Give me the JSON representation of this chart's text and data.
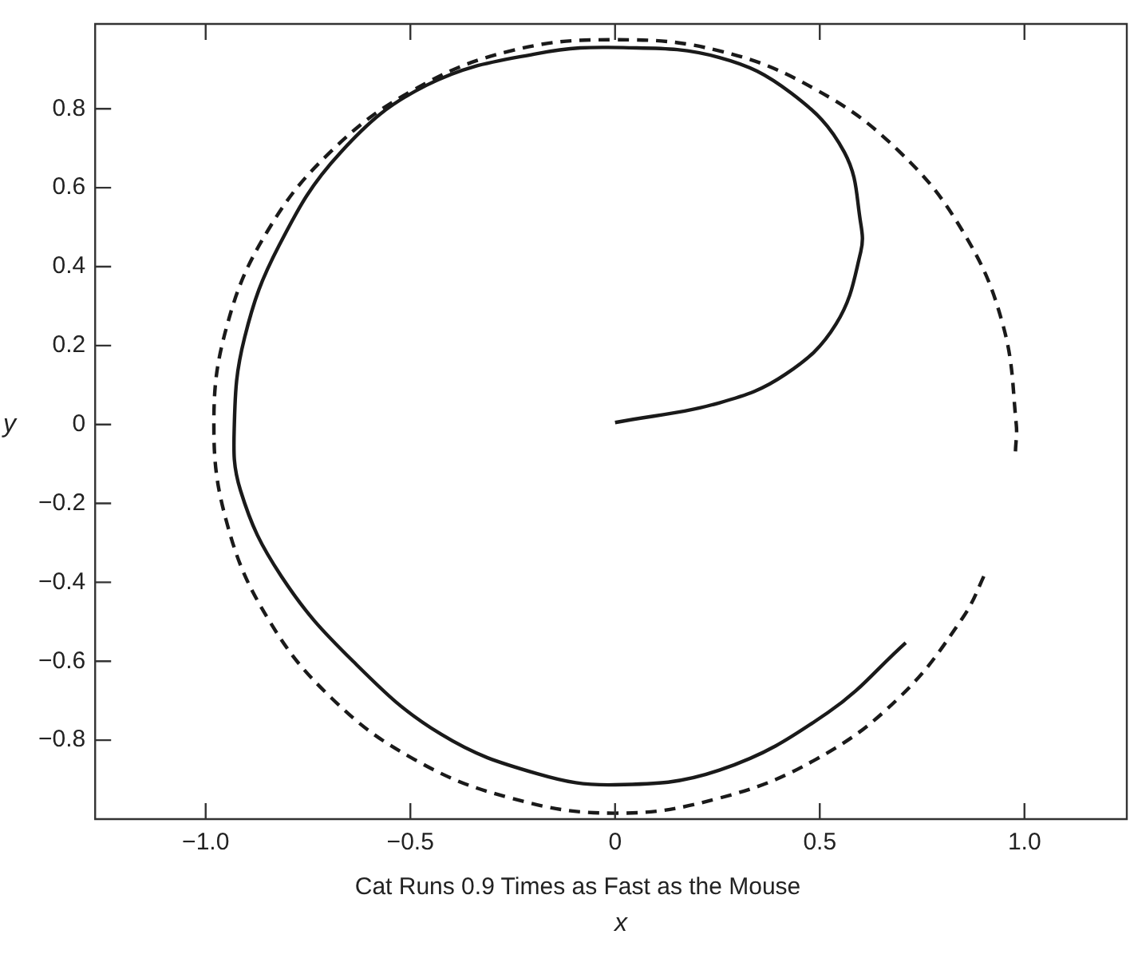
{
  "chart_data": {
    "type": "line",
    "title": "Cat Runs 0.9 Times as Fast as the Mouse",
    "xlabel": "x",
    "ylabel": "y",
    "xlim": [
      -1.27,
      1.25
    ],
    "ylim": [
      -1.0,
      1.015
    ],
    "xticks": [
      {
        "value": -1,
        "label": "−1.0"
      },
      {
        "value": -0.5,
        "label": "−0.5"
      },
      0,
      0.5,
      {
        "value": 1,
        "label": "1.0"
      }
    ],
    "yticks": [
      {
        "value": -0.8,
        "label": "−0.8"
      },
      {
        "value": -0.6,
        "label": "−0.6"
      },
      {
        "value": -0.4,
        "label": "−0.4"
      },
      {
        "value": -0.2,
        "label": "−0.2"
      },
      0,
      0.2,
      0.4,
      0.6,
      0.8
    ],
    "grid": false,
    "legend": false,
    "marker": "none",
    "series": [
      {
        "color": "#1a1a1a",
        "line_style": "solid",
        "x": [
          0,
          0.255,
          0.416,
          0.54,
          0.6,
          0.6,
          0.56,
          0.43,
          0.255,
          0.02,
          -0.19,
          -0.46,
          -0.67,
          -0.82,
          -0.905,
          -0.93,
          -0.915,
          -0.815,
          -0.64,
          -0.425,
          -0.19,
          0,
          0.255,
          0.52,
          0.71
        ],
        "values": [
          0.005,
          0.055,
          0.127,
          0.255,
          0.437,
          0.51,
          0.69,
          0.84,
          0.93,
          0.955,
          0.94,
          0.86,
          0.69,
          0.455,
          0.22,
          0,
          -0.167,
          -0.385,
          -0.6,
          -0.785,
          -0.885,
          -0.913,
          -0.876,
          -0.73,
          -0.553
        ]
      },
      {
        "color": "#1a1a1a",
        "line_style": "dashed",
        "x": [
          0.978,
          0.98,
          0.947,
          0.849,
          0.693,
          0.49,
          0.254,
          0,
          -0.254,
          -0.49,
          -0.693,
          -0.849,
          -0.947,
          -0.98,
          -0.947,
          -0.849,
          -0.693,
          -0.49,
          -0.254,
          0,
          0.254,
          0.49,
          0.693,
          0.849,
          0.909
        ],
        "values": [
          -0.068,
          0,
          0.254,
          0.49,
          0.693,
          0.849,
          0.947,
          0.975,
          0.947,
          0.849,
          0.693,
          0.49,
          0.254,
          0,
          -0.254,
          -0.49,
          -0.693,
          -0.849,
          -0.947,
          -0.985,
          -0.947,
          -0.849,
          -0.693,
          -0.49,
          -0.367
        ]
      }
    ]
  }
}
